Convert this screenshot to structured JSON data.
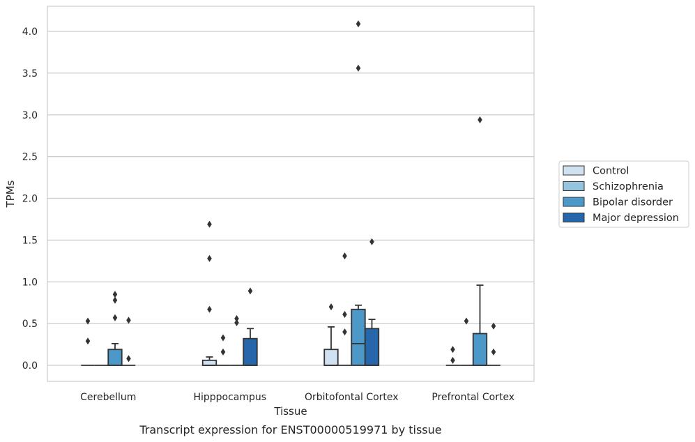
{
  "caption": "Transcript expression for ENST00000519971 by tissue",
  "chart_data": {
    "type": "box",
    "xlabel": "Tissue",
    "ylabel": "TPMs",
    "ylim": [
      -0.2,
      4.3
    ],
    "yticks": [
      0.0,
      0.5,
      1.0,
      1.5,
      2.0,
      2.5,
      3.0,
      3.5,
      4.0
    ],
    "ytick_labels": [
      "0.0",
      "0.5",
      "1.0",
      "1.5",
      "2.0",
      "2.5",
      "3.0",
      "3.5",
      "4.0"
    ],
    "grid": "horizontal",
    "legend_position": "right",
    "categories": [
      "Cerebellum",
      "Hipppocampus",
      "Orbitofontal Cortex",
      "Prefrontal Cortex"
    ],
    "series": [
      {
        "name": "Control",
        "color": "#d0e1f2",
        "boxes": [
          {
            "q1": 0,
            "median": 0,
            "q3": 0,
            "whisker_low": 0,
            "whisker_high": 0,
            "outliers": [
              0.29,
              0.53
            ]
          },
          {
            "q1": 0,
            "median": 0,
            "q3": 0.06,
            "whisker_low": 0,
            "whisker_high": 0.1,
            "outliers": [
              0.67,
              1.28,
              1.69
            ]
          },
          {
            "q1": 0,
            "median": 0,
            "q3": 0.19,
            "whisker_low": 0,
            "whisker_high": 0.46,
            "outliers": [
              0.7
            ]
          },
          {
            "q1": 0,
            "median": 0,
            "q3": 0,
            "whisker_low": 0,
            "whisker_high": 0,
            "outliers": [
              0.06,
              0.19
            ]
          }
        ]
      },
      {
        "name": "Schizophrenia",
        "color": "#94c4df",
        "boxes": [
          {
            "q1": 0,
            "median": 0,
            "q3": 0,
            "whisker_low": 0,
            "whisker_high": 0,
            "outliers": []
          },
          {
            "q1": 0,
            "median": 0,
            "q3": 0,
            "whisker_low": 0,
            "whisker_high": 0,
            "outliers": [
              0.16,
              0.33
            ]
          },
          {
            "q1": 0,
            "median": 0,
            "q3": 0,
            "whisker_low": 0,
            "whisker_high": 0,
            "outliers": [
              0.4,
              0.61,
              1.31
            ]
          },
          {
            "q1": 0,
            "median": 0,
            "q3": 0,
            "whisker_low": 0,
            "whisker_high": 0,
            "outliers": [
              0.53
            ]
          }
        ]
      },
      {
        "name": "Bipolar disorder",
        "color": "#4b98c9",
        "boxes": [
          {
            "q1": 0,
            "median": 0,
            "q3": 0.19,
            "whisker_low": 0,
            "whisker_high": 0.26,
            "outliers": [
              0.57,
              0.78,
              0.85
            ]
          },
          {
            "q1": 0,
            "median": 0,
            "q3": 0,
            "whisker_low": 0,
            "whisker_high": 0,
            "outliers": [
              0.51,
              0.56
            ]
          },
          {
            "q1": 0,
            "median": 0.26,
            "q3": 0.67,
            "whisker_low": 0,
            "whisker_high": 0.72,
            "outliers": [
              3.56,
              4.09
            ]
          },
          {
            "q1": 0,
            "median": 0,
            "q3": 0.38,
            "whisker_low": 0,
            "whisker_high": 0.96,
            "outliers": [
              2.94
            ]
          }
        ]
      },
      {
        "name": "Major depression",
        "color": "#2666ab",
        "boxes": [
          {
            "q1": 0,
            "median": 0,
            "q3": 0,
            "whisker_low": 0,
            "whisker_high": 0,
            "outliers": [
              0.08,
              0.54
            ]
          },
          {
            "q1": 0,
            "median": 0,
            "q3": 0.32,
            "whisker_low": 0,
            "whisker_high": 0.44,
            "outliers": [
              0.89
            ]
          },
          {
            "q1": 0,
            "median": 0,
            "q3": 0.44,
            "whisker_low": 0,
            "whisker_high": 0.55,
            "outliers": [
              1.48
            ]
          },
          {
            "q1": 0,
            "median": 0,
            "q3": 0,
            "whisker_low": 0,
            "whisker_high": 0,
            "outliers": [
              0.16,
              0.47
            ]
          }
        ]
      }
    ]
  }
}
